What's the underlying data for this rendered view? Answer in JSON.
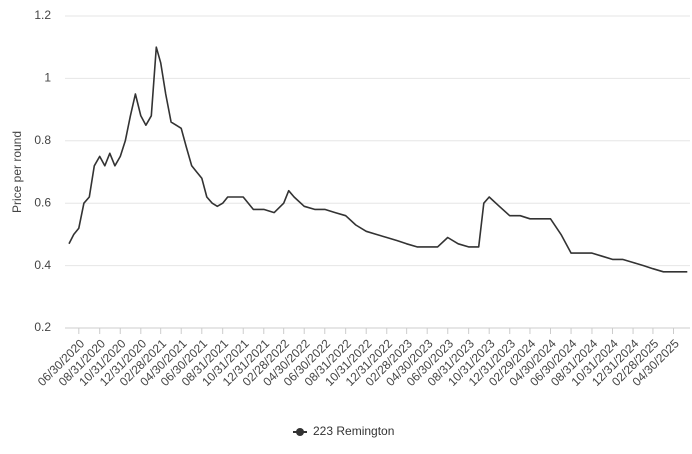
{
  "chart_data": {
    "type": "line",
    "y_label": "Price per round",
    "series": [
      {
        "name": "223 Remington",
        "color": "#333333",
        "x": [
          "06/01/2020",
          "06/15/2020",
          "06/30/2020",
          "07/15/2020",
          "07/31/2020",
          "08/15/2020",
          "08/31/2020",
          "09/15/2020",
          "09/30/2020",
          "10/15/2020",
          "10/31/2020",
          "11/15/2020",
          "11/30/2020",
          "12/15/2020",
          "12/31/2020",
          "01/15/2021",
          "01/31/2021",
          "02/15/2021",
          "02/28/2021",
          "03/15/2021",
          "03/31/2021",
          "04/15/2021",
          "04/30/2021",
          "05/15/2021",
          "05/31/2021",
          "06/15/2021",
          "06/30/2021",
          "07/15/2021",
          "07/31/2021",
          "08/15/2021",
          "08/31/2021",
          "09/15/2021",
          "09/30/2021",
          "10/31/2021",
          "11/30/2021",
          "12/31/2021",
          "01/31/2022",
          "02/28/2022",
          "03/15/2022",
          "03/31/2022",
          "04/30/2022",
          "05/31/2022",
          "06/30/2022",
          "07/31/2022",
          "08/31/2022",
          "09/30/2022",
          "10/31/2022",
          "11/30/2022",
          "12/31/2022",
          "01/31/2023",
          "02/28/2023",
          "03/31/2023",
          "04/30/2023",
          "05/31/2023",
          "06/30/2023",
          "07/31/2023",
          "08/31/2023",
          "09/30/2023",
          "10/15/2023",
          "10/31/2023",
          "11/30/2023",
          "12/31/2023",
          "01/31/2024",
          "02/29/2024",
          "03/31/2024",
          "04/30/2024",
          "05/31/2024",
          "06/30/2024",
          "07/31/2024",
          "08/31/2024",
          "09/30/2024",
          "10/31/2024",
          "11/30/2024",
          "12/31/2024",
          "01/31/2025",
          "02/28/2025",
          "03/31/2025",
          "04/30/2025",
          "06/10/2025"
        ],
        "values": [
          0.47,
          0.5,
          0.52,
          0.6,
          0.62,
          0.72,
          0.75,
          0.72,
          0.76,
          0.72,
          0.75,
          0.8,
          0.88,
          0.95,
          0.88,
          0.85,
          0.88,
          1.1,
          1.05,
          0.95,
          0.86,
          0.85,
          0.84,
          0.78,
          0.72,
          0.7,
          0.68,
          0.62,
          0.6,
          0.59,
          0.6,
          0.62,
          0.62,
          0.62,
          0.58,
          0.58,
          0.57,
          0.6,
          0.64,
          0.62,
          0.59,
          0.58,
          0.58,
          0.57,
          0.56,
          0.53,
          0.51,
          0.5,
          0.49,
          0.48,
          0.47,
          0.46,
          0.46,
          0.46,
          0.49,
          0.47,
          0.46,
          0.46,
          0.6,
          0.62,
          0.59,
          0.56,
          0.56,
          0.55,
          0.55,
          0.55,
          0.5,
          0.44,
          0.44,
          0.44,
          0.43,
          0.42,
          0.42,
          0.41,
          0.4,
          0.39,
          0.38,
          0.38,
          0.38
        ]
      }
    ],
    "xlim": [
      "05/20/2020",
      "06/18/2025"
    ],
    "xticks": [
      "06/30/2020",
      "08/31/2020",
      "10/31/2020",
      "12/31/2020",
      "02/28/2021",
      "04/30/2021",
      "06/30/2021",
      "08/31/2021",
      "10/31/2021",
      "12/31/2021",
      "02/28/2022",
      "04/30/2022",
      "06/30/2022",
      "08/31/2022",
      "10/31/2022",
      "12/31/2022",
      "02/28/2023",
      "04/30/2023",
      "06/30/2023",
      "08/31/2023",
      "10/31/2023",
      "12/31/2023",
      "02/29/2024",
      "04/30/2024",
      "06/30/2024",
      "08/31/2024",
      "10/31/2024",
      "12/31/2024",
      "02/28/2025",
      "04/30/2025"
    ],
    "ylim": [
      0.2,
      1.2
    ],
    "yticks": [
      0.2,
      0.4,
      0.6,
      0.8,
      1,
      1.2
    ],
    "grid": true,
    "legend": "bottom"
  }
}
